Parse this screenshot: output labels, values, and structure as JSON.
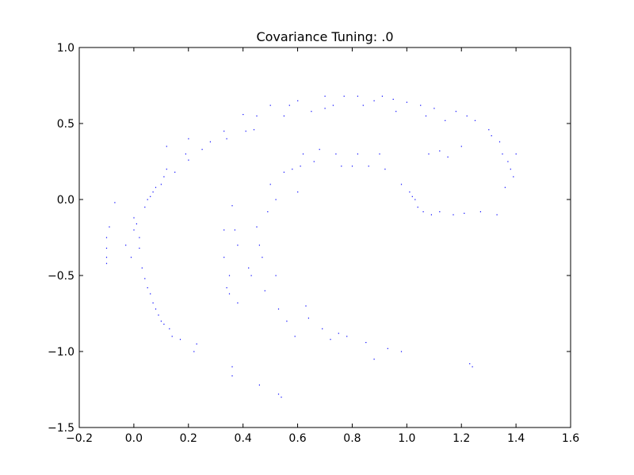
{
  "chart_data": {
    "type": "scatter",
    "title": "Covariance Tuning: .0",
    "xlabel": "",
    "ylabel": "",
    "xlim": [
      -0.2,
      1.6
    ],
    "ylim": [
      -1.5,
      1.0
    ],
    "xticks": [
      "−0.2",
      "0.0",
      "0.2",
      "0.4",
      "0.6",
      "0.8",
      "1.0",
      "1.2",
      "1.4",
      "1.6"
    ],
    "xtick_values": [
      -0.2,
      0.0,
      0.2,
      0.4,
      0.6,
      0.8,
      1.0,
      1.2,
      1.4,
      1.6
    ],
    "yticks": [
      "1.0",
      "0.5",
      "0.0",
      "−0.5",
      "−1.0",
      "−1.5"
    ],
    "ytick_values": [
      1.0,
      0.5,
      0.0,
      -0.5,
      -1.0,
      -1.5
    ],
    "grid": false,
    "marker_color": "#0000ff",
    "series": [
      {
        "name": "points",
        "points": [
          [
            -0.1,
            -0.42
          ],
          [
            -0.1,
            -0.38
          ],
          [
            -0.1,
            -0.32
          ],
          [
            -0.1,
            -0.25
          ],
          [
            -0.09,
            -0.18
          ],
          [
            -0.07,
            -0.02
          ],
          [
            -0.03,
            -0.3
          ],
          [
            -0.01,
            -0.38
          ],
          [
            0.0,
            -0.2
          ],
          [
            0.0,
            -0.12
          ],
          [
            0.01,
            -0.16
          ],
          [
            0.02,
            -0.25
          ],
          [
            0.02,
            -0.32
          ],
          [
            0.03,
            -0.45
          ],
          [
            0.04,
            -0.05
          ],
          [
            0.04,
            -0.52
          ],
          [
            0.05,
            0.0
          ],
          [
            0.05,
            -0.58
          ],
          [
            0.06,
            0.02
          ],
          [
            0.06,
            -0.62
          ],
          [
            0.07,
            -0.68
          ],
          [
            0.07,
            0.05
          ],
          [
            0.08,
            0.08
          ],
          [
            0.08,
            -0.72
          ],
          [
            0.09,
            -0.76
          ],
          [
            0.1,
            0.1
          ],
          [
            0.1,
            -0.8
          ],
          [
            0.11,
            0.15
          ],
          [
            0.11,
            -0.82
          ],
          [
            0.12,
            0.2
          ],
          [
            0.12,
            0.35
          ],
          [
            0.13,
            -0.85
          ],
          [
            0.14,
            -0.9
          ],
          [
            0.15,
            0.18
          ],
          [
            0.17,
            -0.92
          ],
          [
            0.19,
            0.3
          ],
          [
            0.2,
            0.4
          ],
          [
            0.2,
            0.26
          ],
          [
            0.22,
            -1.0
          ],
          [
            0.23,
            -0.95
          ],
          [
            0.25,
            0.33
          ],
          [
            0.28,
            0.38
          ],
          [
            0.33,
            0.45
          ],
          [
            0.34,
            0.4
          ],
          [
            0.33,
            -0.2
          ],
          [
            0.33,
            -0.38
          ],
          [
            0.34,
            -0.58
          ],
          [
            0.35,
            -0.5
          ],
          [
            0.35,
            -0.62
          ],
          [
            0.36,
            -1.1
          ],
          [
            0.36,
            -1.16
          ],
          [
            0.36,
            -0.04
          ],
          [
            0.37,
            -0.2
          ],
          [
            0.38,
            -0.3
          ],
          [
            0.38,
            -0.68
          ],
          [
            0.4,
            0.56
          ],
          [
            0.41,
            0.45
          ],
          [
            0.42,
            -0.45
          ],
          [
            0.43,
            -0.5
          ],
          [
            0.44,
            0.46
          ],
          [
            0.45,
            0.55
          ],
          [
            0.45,
            -0.18
          ],
          [
            0.46,
            -0.3
          ],
          [
            0.46,
            -1.22
          ],
          [
            0.47,
            -0.38
          ],
          [
            0.48,
            -0.6
          ],
          [
            0.49,
            -0.08
          ],
          [
            0.5,
            0.62
          ],
          [
            0.5,
            0.1
          ],
          [
            0.52,
            0.0
          ],
          [
            0.52,
            -0.5
          ],
          [
            0.53,
            -0.72
          ],
          [
            0.53,
            -1.28
          ],
          [
            0.54,
            -1.3
          ],
          [
            0.55,
            0.55
          ],
          [
            0.55,
            0.18
          ],
          [
            0.56,
            -0.8
          ],
          [
            0.57,
            0.62
          ],
          [
            0.58,
            0.2
          ],
          [
            0.59,
            -0.9
          ],
          [
            0.6,
            0.65
          ],
          [
            0.6,
            0.05
          ],
          [
            0.61,
            0.22
          ],
          [
            0.62,
            0.3
          ],
          [
            0.63,
            -0.7
          ],
          [
            0.64,
            -0.78
          ],
          [
            0.65,
            0.58
          ],
          [
            0.66,
            0.25
          ],
          [
            0.68,
            0.33
          ],
          [
            0.69,
            -0.85
          ],
          [
            0.7,
            0.68
          ],
          [
            0.7,
            0.6
          ],
          [
            0.72,
            -0.92
          ],
          [
            0.73,
            0.62
          ],
          [
            0.74,
            0.3
          ],
          [
            0.75,
            -0.88
          ],
          [
            0.76,
            0.22
          ],
          [
            0.77,
            0.68
          ],
          [
            0.78,
            -0.9
          ],
          [
            0.8,
            0.22
          ],
          [
            0.82,
            0.68
          ],
          [
            0.82,
            0.3
          ],
          [
            0.84,
            0.62
          ],
          [
            0.85,
            -0.94
          ],
          [
            0.86,
            0.22
          ],
          [
            0.88,
            0.65
          ],
          [
            0.88,
            -1.05
          ],
          [
            0.9,
            0.3
          ],
          [
            0.91,
            0.68
          ],
          [
            0.92,
            0.2
          ],
          [
            0.93,
            -0.98
          ],
          [
            0.95,
            0.66
          ],
          [
            0.96,
            0.58
          ],
          [
            0.98,
            -1.0
          ],
          [
            0.98,
            0.1
          ],
          [
            1.0,
            0.64
          ],
          [
            1.01,
            0.05
          ],
          [
            1.02,
            0.02
          ],
          [
            1.03,
            0.0
          ],
          [
            1.04,
            -0.05
          ],
          [
            1.05,
            0.62
          ],
          [
            1.06,
            -0.08
          ],
          [
            1.07,
            0.55
          ],
          [
            1.08,
            0.3
          ],
          [
            1.09,
            -0.1
          ],
          [
            1.1,
            0.6
          ],
          [
            1.12,
            -0.08
          ],
          [
            1.12,
            0.32
          ],
          [
            1.14,
            0.52
          ],
          [
            1.15,
            0.28
          ],
          [
            1.17,
            -0.1
          ],
          [
            1.18,
            0.58
          ],
          [
            1.2,
            0.35
          ],
          [
            1.21,
            -0.09
          ],
          [
            1.22,
            0.55
          ],
          [
            1.23,
            -1.08
          ],
          [
            1.24,
            -1.1
          ],
          [
            1.25,
            0.52
          ],
          [
            1.27,
            -0.08
          ],
          [
            1.3,
            0.46
          ],
          [
            1.31,
            0.42
          ],
          [
            1.33,
            -0.1
          ],
          [
            1.34,
            0.38
          ],
          [
            1.35,
            0.3
          ],
          [
            1.36,
            0.08
          ],
          [
            1.37,
            0.25
          ],
          [
            1.38,
            0.2
          ],
          [
            1.39,
            0.15
          ],
          [
            1.4,
            0.3
          ]
        ]
      }
    ]
  }
}
